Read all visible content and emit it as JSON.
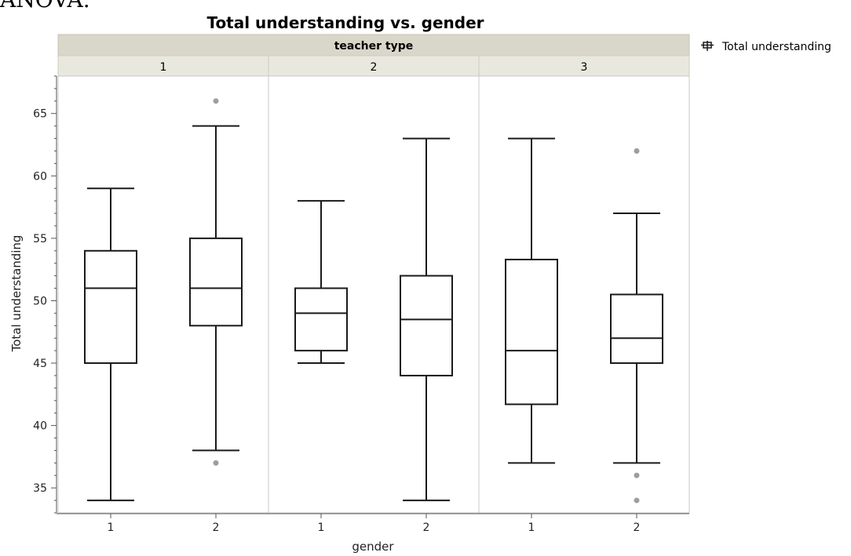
{
  "top_text": "ANOVA.",
  "chart_data": {
    "type": "boxplot",
    "title": "Total understanding vs. gender",
    "panel_header": "teacher type",
    "xlabel": "gender",
    "ylabel": "Total understanding",
    "ylim": [
      33,
      68
    ],
    "yticks": [
      35,
      40,
      45,
      50,
      55,
      60,
      65
    ],
    "legend": {
      "label": "Total understanding",
      "placement": "top-right"
    },
    "panels": [
      {
        "label": "1",
        "groups": [
          {
            "label": "1",
            "min": 34,
            "q1": 45,
            "median": 51,
            "q3": 54,
            "max": 59,
            "outliers": []
          },
          {
            "label": "2",
            "min": 38,
            "q1": 48,
            "median": 51,
            "q3": 55,
            "max": 64,
            "outliers": [
              37,
              66
            ]
          }
        ]
      },
      {
        "label": "2",
        "groups": [
          {
            "label": "1",
            "min": 45,
            "q1": 46,
            "median": 49,
            "q3": 51,
            "max": 58,
            "outliers": []
          },
          {
            "label": "2",
            "min": 34,
            "q1": 44,
            "median": 48.5,
            "q3": 52,
            "max": 63,
            "outliers": []
          }
        ]
      },
      {
        "label": "3",
        "groups": [
          {
            "label": "1",
            "min": 37,
            "q1": 41.7,
            "median": 46,
            "q3": 53.3,
            "max": 63,
            "outliers": []
          },
          {
            "label": "2",
            "min": 37,
            "q1": 45,
            "median": 47,
            "q3": 50.5,
            "max": 57,
            "outliers": [
              36,
              34,
              62
            ]
          }
        ]
      }
    ],
    "colors": {
      "header_bg": "#d9d7c9",
      "subheader_bg": "#e9e8df",
      "box_stroke": "#1a1a1a",
      "outlier": "#9e9e9e",
      "frame": "#c8c8c8",
      "axis": "#555555"
    }
  }
}
